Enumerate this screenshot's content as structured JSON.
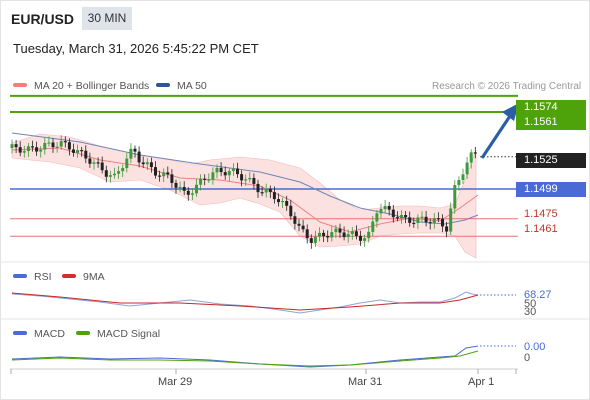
{
  "header": {
    "symbol": "EUR/USD",
    "timeframe": "30 MIN",
    "timestamp": "Tuesday, March 31, 2026 5:45:22 PM CET"
  },
  "legend": {
    "bollinger": "MA 20 + Bollinger Bands",
    "ma50": "MA 50",
    "credit": "Research © 2026 Trading Central"
  },
  "colors": {
    "green": "#4fa30a",
    "blue": "#4a6bd6",
    "red": "#e57373",
    "dark": "#222222",
    "band": "#fcdcdc",
    "arrow": "#2a5fa6"
  },
  "chart_data": [
    {
      "type": "candlestick",
      "title": "EUR/USD",
      "x_ticks": [
        "Mar 29",
        "Mar 31",
        "Apr 1"
      ],
      "price_range": [
        1.1435,
        1.1595
      ],
      "levels": [
        {
          "label": "1.1574",
          "value": 1.1574,
          "kind": "resistance"
        },
        {
          "label": "1.1561",
          "value": 1.1561,
          "kind": "resistance"
        },
        {
          "label": "1.1525",
          "value": 1.1525,
          "kind": "last"
        },
        {
          "label": "1.1499",
          "value": 1.1499,
          "kind": "pivot"
        },
        {
          "label": "1.1475",
          "value": 1.1475,
          "kind": "support"
        },
        {
          "label": "1.1461",
          "value": 1.1461,
          "kind": "support"
        }
      ],
      "series": [
        {
          "name": "MA 20 + Bollinger Bands"
        },
        {
          "name": "MA 50"
        }
      ]
    },
    {
      "type": "line",
      "series": [
        {
          "name": "RSI",
          "last_label": "68.27"
        },
        {
          "name": "9MA"
        }
      ],
      "y_ticks": [
        "50",
        "30"
      ]
    },
    {
      "type": "line",
      "series": [
        {
          "name": "MACD",
          "last_label": "0.00"
        },
        {
          "name": "MACD Signal"
        }
      ],
      "y_ticks": [
        "0"
      ]
    }
  ],
  "rsi_legend": {
    "rsi": "RSI",
    "ma": "9MA"
  },
  "macd_legend": {
    "macd": "MACD",
    "signal": "MACD Signal"
  }
}
